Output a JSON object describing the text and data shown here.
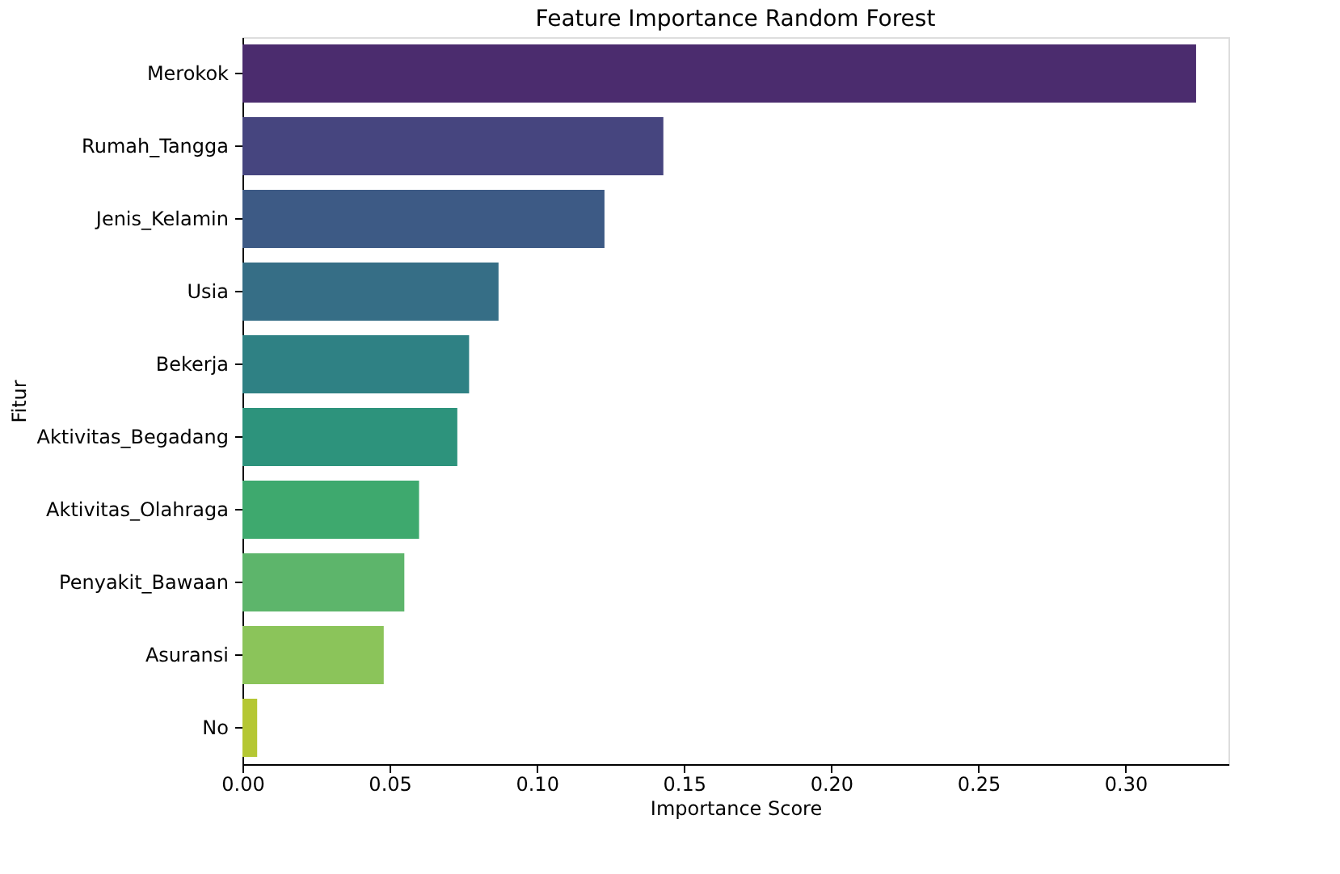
{
  "chart_data": {
    "type": "bar",
    "orientation": "horizontal",
    "title": "Feature Importance Random Forest",
    "xlabel": "Importance Score",
    "ylabel": "Fitur",
    "categories": [
      "Merokok",
      "Rumah_Tangga",
      "Jenis_Kelamin",
      "Usia",
      "Bekerja",
      "Aktivitas_Begadang",
      "Aktivitas_Olahraga",
      "Penyakit_Bawaan",
      "Asuransi",
      "No"
    ],
    "values": [
      0.324,
      0.143,
      0.123,
      0.087,
      0.077,
      0.073,
      0.06,
      0.055,
      0.048,
      0.005
    ],
    "colors": [
      "#4b2c6e",
      "#46457f",
      "#3d5a85",
      "#366e86",
      "#2f8184",
      "#2d937c",
      "#3ea96e",
      "#5db56b",
      "#8bc45a",
      "#b5c733"
    ],
    "xlim": [
      0,
      0.335
    ],
    "xticks": [
      {
        "value": 0,
        "label": "0.00"
      },
      {
        "value": 0.05,
        "label": "0.05"
      },
      {
        "value": 0.1,
        "label": "0.10"
      },
      {
        "value": 0.15,
        "label": "0.15"
      },
      {
        "value": 0.2,
        "label": "0.20"
      },
      {
        "value": 0.25,
        "label": "0.25"
      },
      {
        "value": 0.3,
        "label": "0.30"
      }
    ],
    "grid": false
  }
}
